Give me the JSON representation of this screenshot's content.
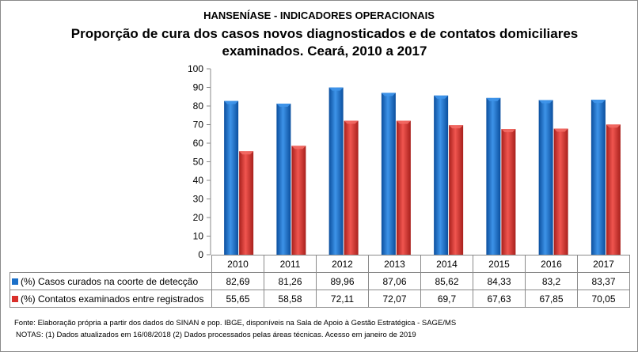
{
  "chart_data": {
    "type": "bar",
    "title": "HANSENÍASE - INDICADORES OPERACIONAIS",
    "subtitle": "Proporção de cura dos casos novos diagnosticados e de contatos domiciliares examinados. Ceará, 2010 a 2017",
    "categories": [
      "2010",
      "2011",
      "2012",
      "2013",
      "2014",
      "2015",
      "2016",
      "2017"
    ],
    "series": [
      {
        "name": "(%) Casos curados na coorte de detecção",
        "color": "#1a6fc8",
        "values": [
          82.69,
          81.26,
          89.96,
          87.06,
          85.62,
          84.33,
          83.2,
          83.37
        ],
        "labels": [
          "82,69",
          "81,26",
          "89,96",
          "87,06",
          "85,62",
          "84,33",
          "83,2",
          "83,37"
        ]
      },
      {
        "name": "(%) Contatos examinados entre registrados",
        "color": "#d9302b",
        "values": [
          55.65,
          58.58,
          72.11,
          72.07,
          69.7,
          67.63,
          67.85,
          70.05
        ],
        "labels": [
          "55,65",
          "58,58",
          "72,11",
          "72,07",
          "69,7",
          "67,63",
          "67,85",
          "70,05"
        ]
      }
    ],
    "ylim": [
      0,
      100
    ],
    "yticks": [
      "0",
      "10",
      "20",
      "30",
      "40",
      "50",
      "60",
      "70",
      "80",
      "90",
      "100"
    ],
    "grid": false,
    "legend": "data-table"
  },
  "footer": {
    "source": "Fonte:  Elaboração própria a partir dos dados do  SINAN  e  pop. IBGE, disponíveis na Sala de Apoio à Gestão Estratégica -  SAGE/MS",
    "notes": "NOTAS: (1) Dados atualizados em 16/08/2018 (2) Dados processados pelas áreas técnicas. Acesso em janeiro de 2019"
  }
}
